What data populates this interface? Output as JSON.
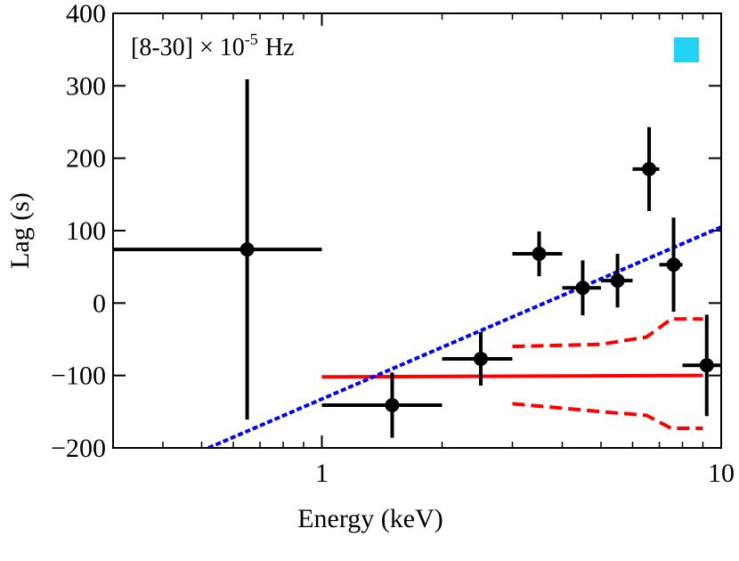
{
  "chart_data": {
    "type": "errorbar",
    "xlabel": "Energy (keV)",
    "ylabel": "Lag (s)",
    "annotation": {
      "base": "[8-30] × 10",
      "exponent": "-5",
      "unit": "Hz"
    },
    "legend_marker_color": "#22d3f5",
    "xscale": "log",
    "xlim": [
      0.3,
      10
    ],
    "xticks": [
      1,
      10
    ],
    "xminorticks": [
      0.3,
      0.4,
      0.5,
      0.6,
      0.7,
      0.8,
      0.9,
      2,
      3,
      4,
      5,
      6,
      7,
      8,
      9
    ],
    "ylim": [
      -200,
      400
    ],
    "yticks": [
      {
        "value": -200,
        "label": "−200"
      },
      {
        "value": -100,
        "label": "−100"
      },
      0,
      100,
      200,
      300,
      400
    ],
    "points": {
      "color": "#000000",
      "x": [
        0.65,
        1.5,
        2.5,
        3.5,
        4.5,
        5.5,
        6.6,
        7.6,
        9.2
      ],
      "xlo": [
        0.3,
        1,
        2,
        3,
        4,
        5,
        6,
        7,
        8
      ],
      "xhi": [
        1,
        2,
        3,
        4,
        5,
        6,
        7,
        8,
        10
      ],
      "values": [
        74,
        -141,
        -77,
        68,
        21,
        31,
        185,
        53,
        -86
      ],
      "yerr": [
        235,
        45,
        37,
        31,
        38,
        37,
        58,
        65,
        70
      ]
    },
    "lines": [
      {
        "color": "#ff0000",
        "style": "solid",
        "x": [
          1,
          9
        ],
        "values": [
          -102,
          -100
        ]
      },
      {
        "color": "#ff0000",
        "style": "dashed",
        "x": [
          3,
          5,
          6.5,
          7.5,
          9
        ],
        "values": [
          -60,
          -57,
          -47,
          -22,
          -22
        ]
      },
      {
        "color": "#ff0000",
        "style": "dashed",
        "x": [
          3,
          5,
          6.5,
          7.5,
          9
        ],
        "values": [
          -139,
          -150,
          -155,
          -173,
          -173
        ]
      },
      {
        "color": "#0000ff",
        "style": "dotted",
        "x": [
          0.52,
          10
        ],
        "values": [
          -200,
          105
        ]
      }
    ]
  }
}
